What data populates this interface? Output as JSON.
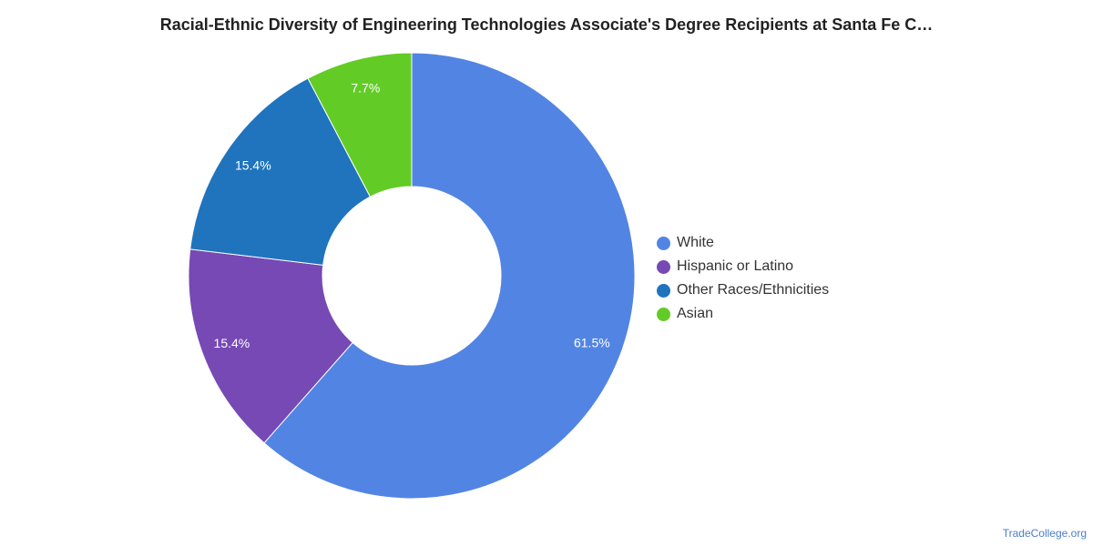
{
  "credit": "TradeCollege.org",
  "chart_data": {
    "type": "pie",
    "variant": "donut",
    "title": "Racial-Ethnic Diversity of Engineering Technologies Associate's Degree Recipients at Santa Fe C…",
    "legend_position": "right",
    "series": [
      {
        "name": "White",
        "value": 61.5,
        "label": "61.5%",
        "color": "#5285e3"
      },
      {
        "name": "Hispanic or Latino",
        "value": 15.4,
        "label": "15.4%",
        "color": "#7649b4"
      },
      {
        "name": "Other Races/Ethnicities",
        "value": 15.4,
        "label": "15.4%",
        "color": "#1f74bd"
      },
      {
        "name": "Asian",
        "value": 7.7,
        "label": "7.7%",
        "color": "#63cb26"
      }
    ]
  }
}
